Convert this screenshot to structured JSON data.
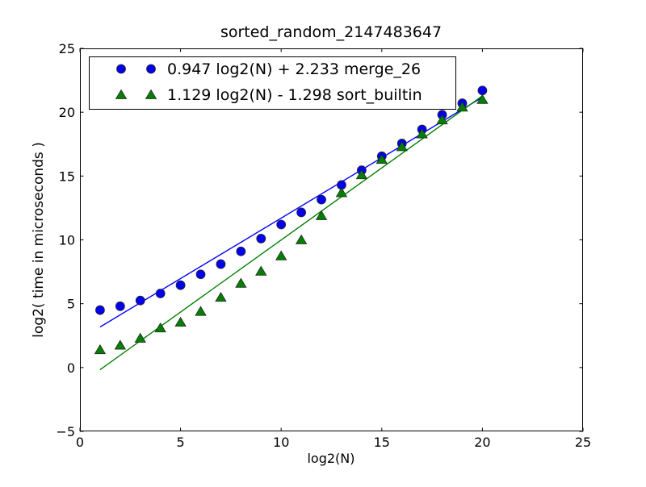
{
  "chart_data": {
    "type": "scatter",
    "title": "sorted_random_2147483647",
    "xlabel": "log2(N)",
    "ylabel": "log2( time in microseconds )",
    "xlim": [
      0,
      25
    ],
    "ylim": [
      -5,
      25
    ],
    "xticks": [
      0,
      5,
      10,
      15,
      20,
      25
    ],
    "yticks": [
      -5,
      0,
      5,
      10,
      15,
      20,
      25
    ],
    "grid": false,
    "legend_position": "upper left",
    "x": [
      1,
      2,
      3,
      4,
      5,
      6,
      7,
      8,
      9,
      10,
      11,
      12,
      13,
      14,
      15,
      16,
      17,
      18,
      19,
      20
    ],
    "series": [
      {
        "name": "merge_26",
        "legend_label": "0.947 log2(N) + 2.233 merge_26",
        "marker": "circle",
        "color": "#0000ee",
        "line_color": "#0000ff",
        "values": [
          4.5,
          4.8,
          5.25,
          5.8,
          6.45,
          7.3,
          8.1,
          9.1,
          10.1,
          11.2,
          12.15,
          13.15,
          14.3,
          15.45,
          16.55,
          17.55,
          18.65,
          19.8,
          20.7,
          21.7
        ],
        "fit": {
          "slope": 0.947,
          "intercept": 2.233,
          "x_start": 1,
          "x_end": 20
        }
      },
      {
        "name": "sort_builtin",
        "legend_label": "1.129 log2(N) - 1.298 sort_builtin",
        "marker": "triangle",
        "color": "#007f00",
        "line_color": "#008000",
        "values": [
          1.4,
          1.75,
          2.3,
          3.1,
          3.55,
          4.4,
          5.5,
          6.6,
          7.55,
          8.75,
          10.0,
          11.9,
          13.7,
          15.1,
          16.3,
          17.3,
          18.3,
          19.4,
          20.4,
          21.0
        ],
        "fit": {
          "slope": 1.129,
          "intercept": -1.298,
          "x_start": 1,
          "x_end": 20
        }
      }
    ]
  }
}
